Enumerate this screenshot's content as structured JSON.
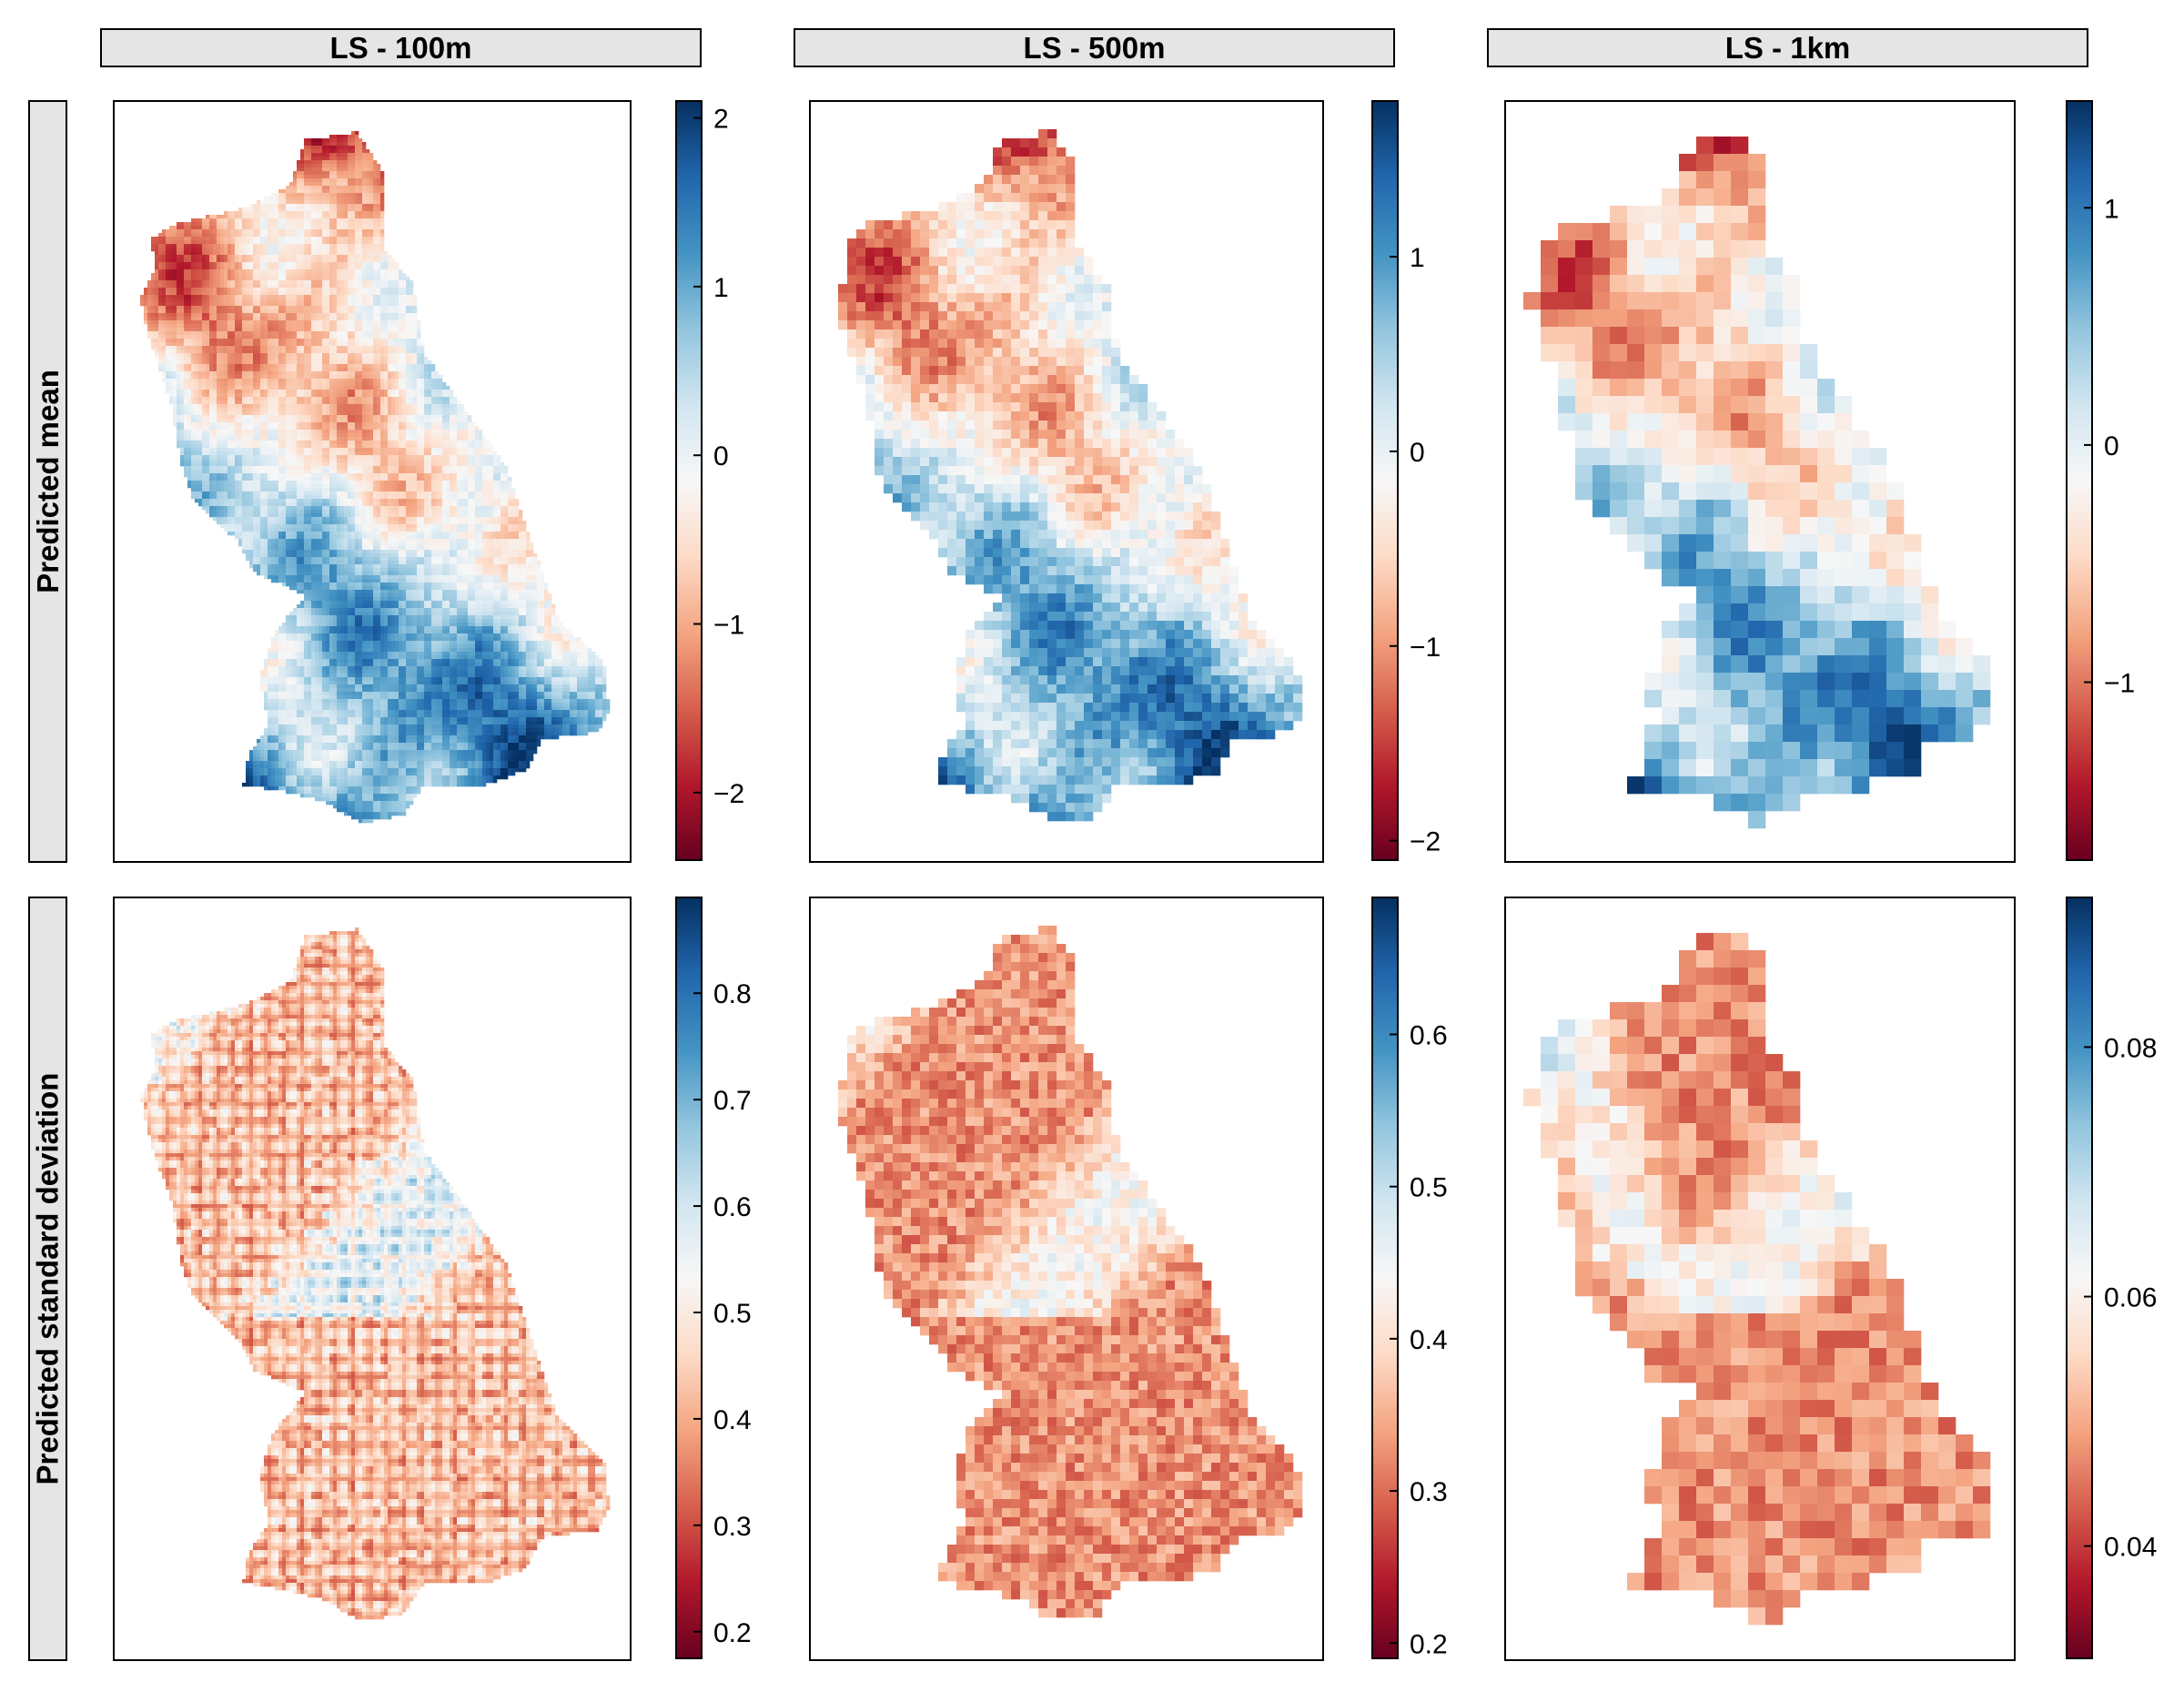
{
  "colors": {
    "strip_bg": "#e5e5e5",
    "palette": "RdBu (red = low, blue = high)"
  },
  "columns": [
    "LS - 100m",
    "LS - 500m",
    "LS - 1km"
  ],
  "rows": [
    "Predicted mean",
    "Predicted standard deviation"
  ],
  "chart_data": [
    {
      "type": "heatmap",
      "row": "Predicted mean",
      "column": "LS - 100m",
      "colorbar": {
        "min": -2.4,
        "max": 2.1,
        "ticks": [
          2,
          1,
          0,
          -1,
          -2
        ],
        "tick_labels": [
          "2",
          "1",
          "0",
          "−1",
          "−2"
        ]
      }
    },
    {
      "type": "heatmap",
      "row": "Predicted mean",
      "column": "LS - 500m",
      "colorbar": {
        "min": -2.1,
        "max": 1.8,
        "ticks": [
          1,
          0,
          -1,
          -2
        ],
        "tick_labels": [
          "1",
          "0",
          "−1",
          "−2"
        ]
      }
    },
    {
      "type": "heatmap",
      "row": "Predicted mean",
      "column": "LS - 1km",
      "colorbar": {
        "min": -1.75,
        "max": 1.45,
        "ticks": [
          1,
          0,
          -1
        ],
        "tick_labels": [
          "1",
          "0",
          "−1"
        ]
      }
    },
    {
      "type": "heatmap",
      "row": "Predicted standard deviation",
      "column": "LS - 100m",
      "colorbar": {
        "min": 0.175,
        "max": 0.89,
        "ticks": [
          0.8,
          0.7,
          0.6,
          0.5,
          0.4,
          0.3,
          0.2
        ],
        "tick_labels": [
          "0.8",
          "0.7",
          "0.6",
          "0.5",
          "0.4",
          "0.3",
          "0.2"
        ]
      }
    },
    {
      "type": "heatmap",
      "row": "Predicted standard deviation",
      "column": "LS - 500m",
      "colorbar": {
        "min": 0.19,
        "max": 0.69,
        "ticks": [
          0.6,
          0.5,
          0.4,
          0.3,
          0.2
        ],
        "tick_labels": [
          "0.6",
          "0.5",
          "0.4",
          "0.3",
          "0.2"
        ]
      }
    },
    {
      "type": "heatmap",
      "row": "Predicted standard deviation",
      "column": "LS - 1km",
      "colorbar": {
        "min": 0.031,
        "max": 0.092,
        "ticks": [
          0.08,
          0.06,
          0.04
        ],
        "tick_labels": [
          "0.08",
          "0.06",
          "0.04"
        ]
      }
    }
  ]
}
